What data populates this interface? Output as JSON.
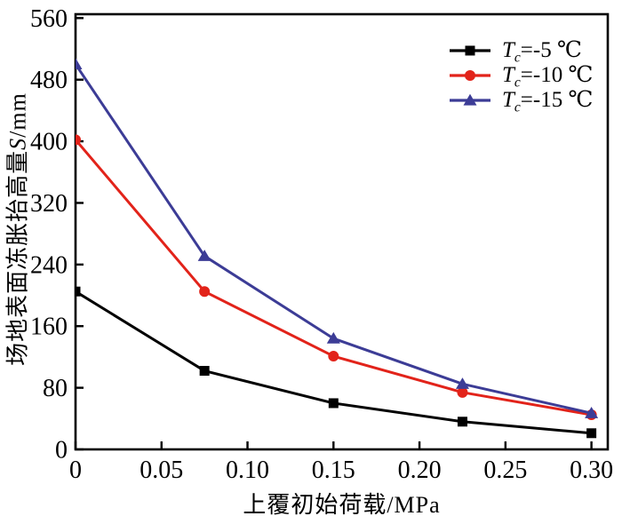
{
  "chart_data": {
    "type": "line",
    "x": [
      0,
      0.075,
      0.15,
      0.225,
      0.3
    ],
    "series": [
      {
        "name": "Tc=-5 ℃",
        "label_sym": "T",
        "label_sub": "c",
        "label_rest": "=-5 ℃",
        "color": "#000000",
        "marker": "square",
        "values": [
          205,
          102,
          60,
          36,
          21
        ]
      },
      {
        "name": "Tc=-10 ℃",
        "label_sym": "T",
        "label_sub": "c",
        "label_rest": "=-10 ℃",
        "color": "#e2231a",
        "marker": "circle",
        "values": [
          402,
          205,
          121,
          74,
          45
        ]
      },
      {
        "name": "Tc=-15 ℃",
        "label_sym": "T",
        "label_sub": "c",
        "label_rest": "=-15 ℃",
        "color": "#3c3c96",
        "marker": "triangle",
        "values": [
          500,
          251,
          144,
          85,
          47
        ]
      }
    ],
    "xlabel": "上覆初始荷载/MPa",
    "ylabel_prefix": "场地表面冻胀抬高量",
    "ylabel_var": "S",
    "ylabel_unit": "/mm",
    "x_ticks": {
      "values": [
        0,
        0.05,
        0.1,
        0.15,
        0.2,
        0.25,
        0.3
      ],
      "labels": [
        "0",
        "0.05",
        "0.10",
        "0.15",
        "0.20",
        "0.25",
        "0.30"
      ]
    },
    "y_ticks": {
      "values": [
        0,
        80,
        160,
        240,
        320,
        400,
        480,
        560
      ],
      "labels": [
        "0",
        "80",
        "160",
        "240",
        "320",
        "400",
        "480",
        "560"
      ]
    },
    "xlim": [
      0,
      0.31
    ],
    "ylim": [
      0,
      565
    ],
    "grid": false,
    "legend_position": "top-right",
    "axis_color": "#000000",
    "background_color": "#ffffff"
  }
}
